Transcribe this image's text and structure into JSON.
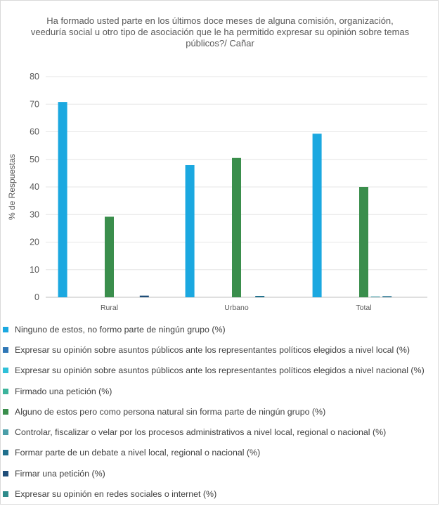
{
  "chart_data": {
    "type": "bar",
    "title": "Ha formado usted parte en los últimos doce meses de alguna comisión, organización, veeduría social u otro tipo de asociación que le ha permitido expresar su opinión sobre temas públicos?/ Cañar",
    "ylabel": "% de Respuestas",
    "xlabel": "",
    "ylim": [
      0,
      80
    ],
    "yticks": [
      0,
      10,
      20,
      30,
      40,
      50,
      60,
      70,
      80
    ],
    "grid": true,
    "legend_position": "bottom",
    "categories": [
      "Rural",
      "Urbano",
      "Total"
    ],
    "series": [
      {
        "name": "Ninguno de estos, no formo parte de ningún grupo (%)",
        "color": "#1ba8e0",
        "values": [
          70.8,
          47.9,
          59.3
        ]
      },
      {
        "name": "Expresar su opinión sobre asuntos públicos ante los representantes políticos elegidos a nivel local (%)",
        "color": "#2f77b6",
        "values": [
          0,
          0,
          0
        ]
      },
      {
        "name": "Expresar su opinión sobre asuntos públicos ante los representantes políticos elegidos a nivel nacional (%)",
        "color": "#2fc0d8",
        "values": [
          0,
          0,
          0
        ]
      },
      {
        "name": "Firmado una petición (%)",
        "color": "#3cb39b",
        "values": [
          0,
          0,
          0
        ]
      },
      {
        "name": "Alguno de estos pero como persona natural sin forma parte de ningún grupo (%)",
        "color": "#3a8e4c",
        "values": [
          29.2,
          50.5,
          40.0
        ]
      },
      {
        "name": "Controlar, fiscalizar o velar por los procesos administrativos a nivel local, regional o nacional (%)",
        "color": "#4a9ea8",
        "values": [
          0,
          0,
          0.3
        ]
      },
      {
        "name": "Formar parte de un debate a nivel local, regional o nacional (%)",
        "color": "#1f6f8c",
        "values": [
          0,
          0.5,
          0.4
        ]
      },
      {
        "name": "Firmar una petición (%)",
        "color": "#1f4e79",
        "values": [
          0.6,
          0,
          0
        ]
      },
      {
        "name": "Expresar su opinión en redes sociales o internet (%)",
        "color": "#2e8b8b",
        "values": [
          0,
          0,
          0
        ]
      }
    ]
  }
}
